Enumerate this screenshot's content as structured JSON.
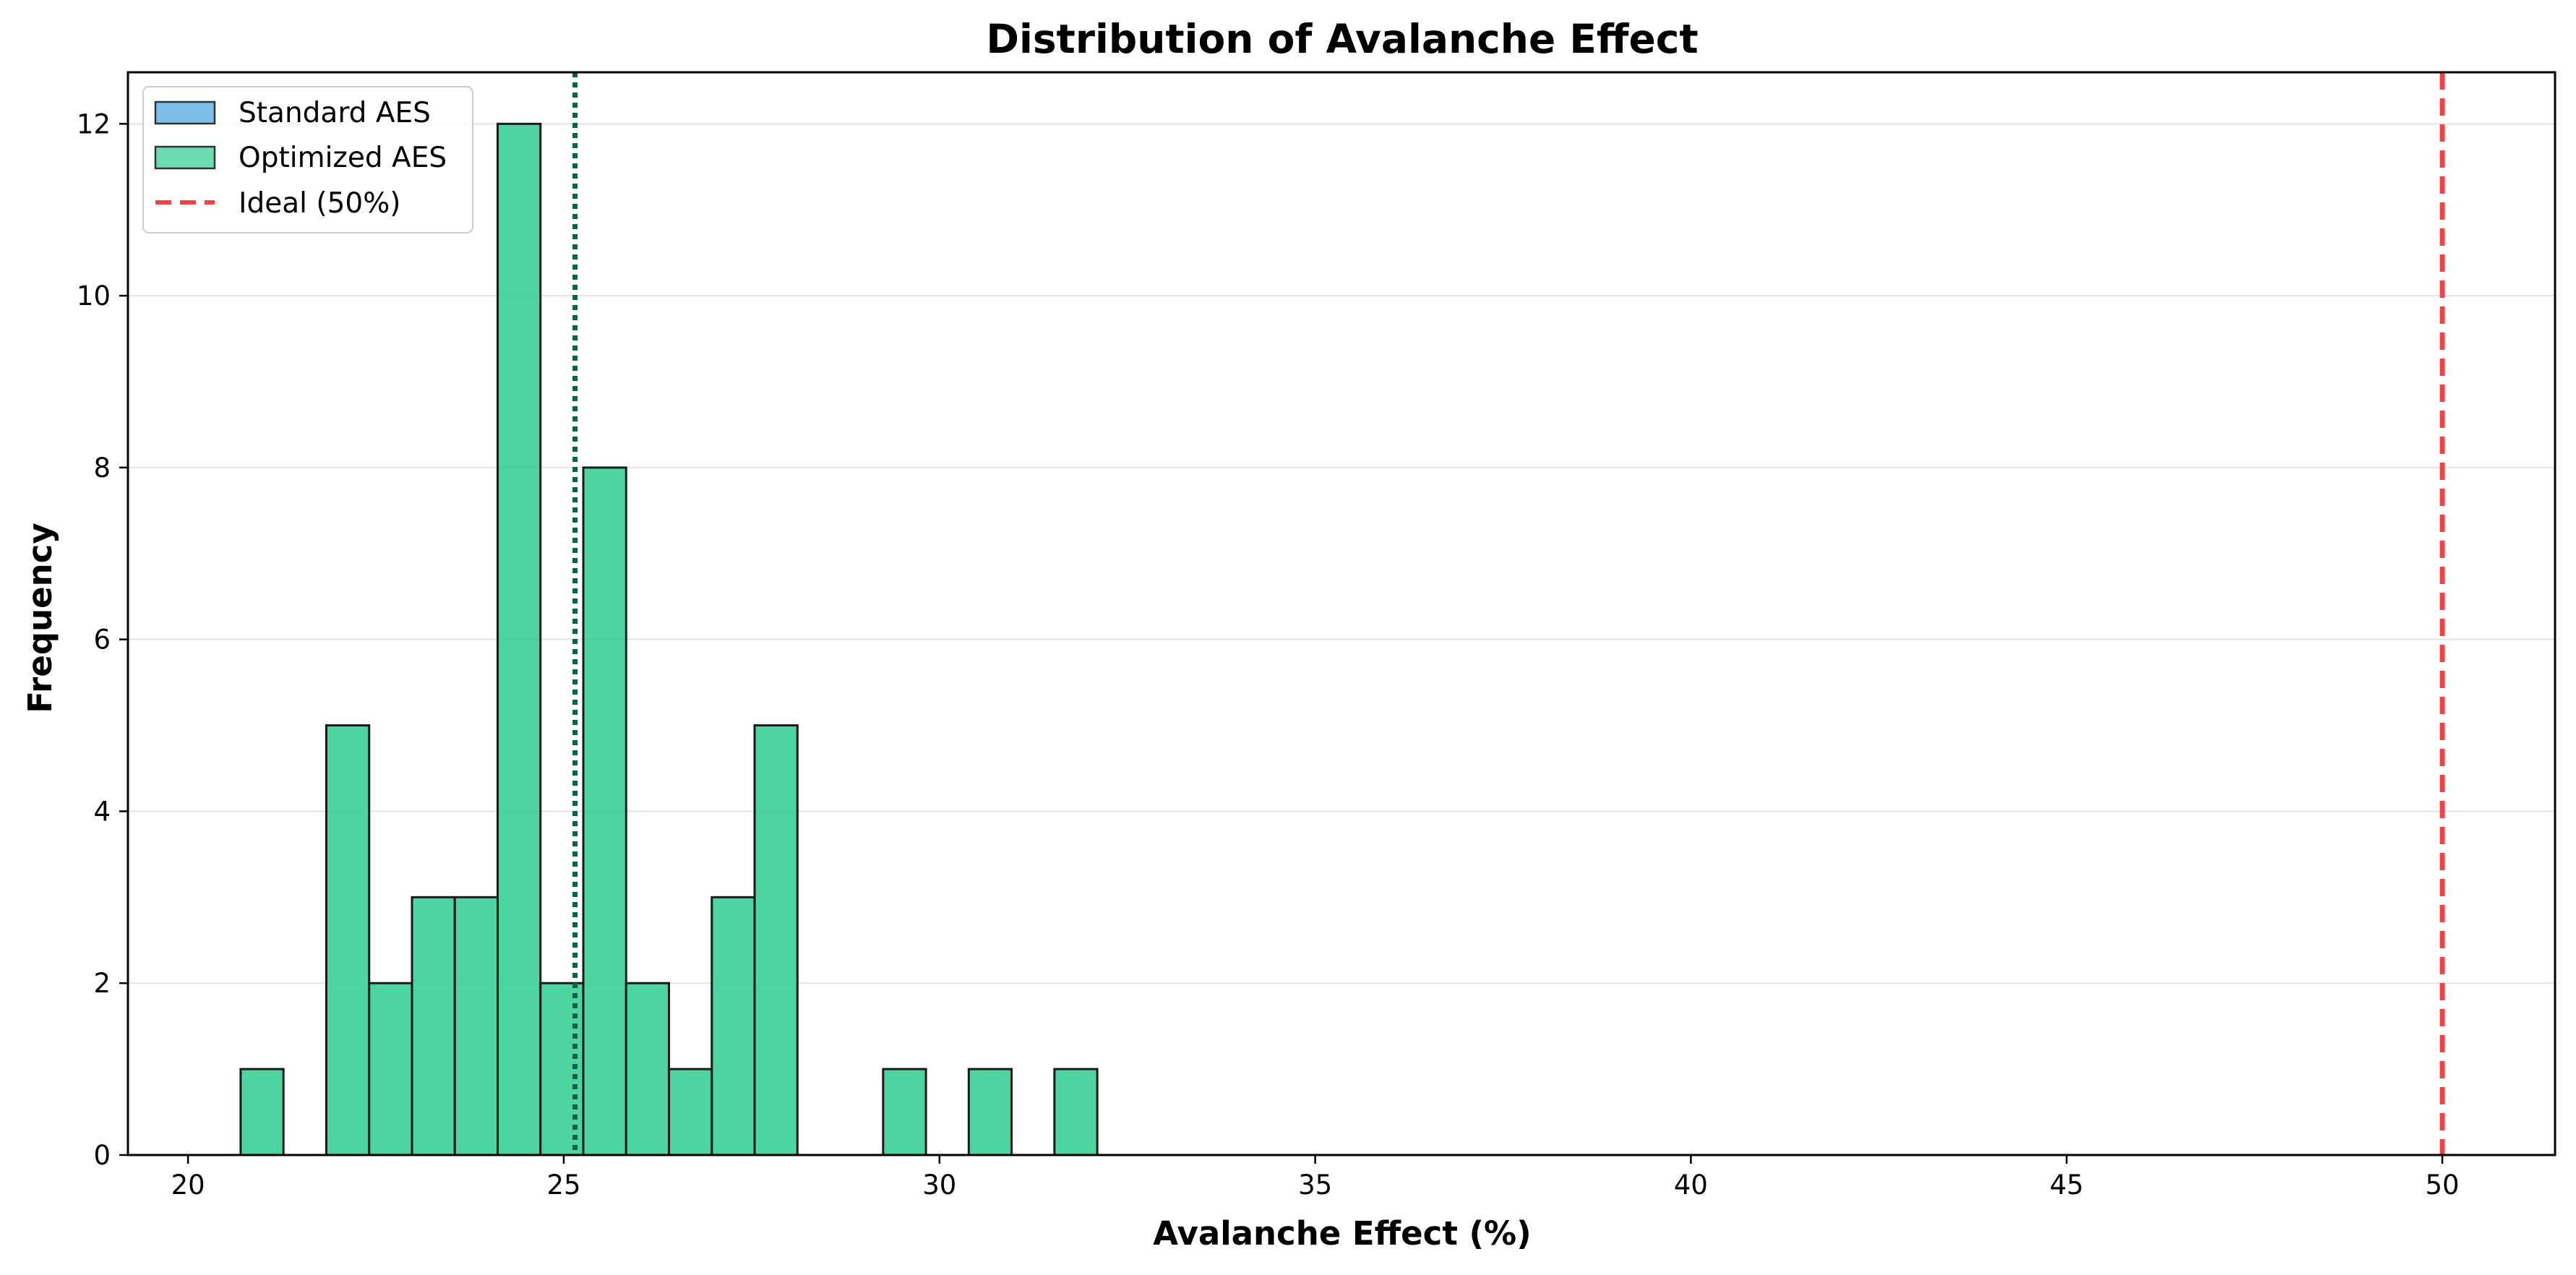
{
  "chart_data": {
    "type": "bar",
    "title": "Distribution of Avalanche Effect",
    "xlabel": "Avalanche Effect (%)",
    "ylabel": "Frequency",
    "xlim": [
      19.2,
      51.5
    ],
    "ylim": [
      0,
      12.6
    ],
    "xticks": [
      20,
      25,
      30,
      35,
      40,
      45,
      50
    ],
    "yticks": [
      0,
      2,
      4,
      6,
      8,
      10,
      12
    ],
    "grid": "y",
    "legend_position": "top-left",
    "bin_width": 0.57,
    "series": [
      {
        "name": "Standard AES",
        "color": "#5dade2",
        "bins": []
      },
      {
        "name": "Optimized AES",
        "color": "#2ecc8f",
        "bins": [
          {
            "x0": 20.7,
            "count": 1
          },
          {
            "x0": 21.84,
            "count": 5
          },
          {
            "x0": 22.41,
            "count": 2
          },
          {
            "x0": 22.98,
            "count": 3
          },
          {
            "x0": 23.55,
            "count": 3
          },
          {
            "x0": 24.12,
            "count": 12
          },
          {
            "x0": 24.69,
            "count": 2
          },
          {
            "x0": 25.26,
            "count": 8
          },
          {
            "x0": 25.83,
            "count": 2
          },
          {
            "x0": 26.4,
            "count": 1
          },
          {
            "x0": 26.97,
            "count": 3
          },
          {
            "x0": 27.54,
            "count": 5
          },
          {
            "x0": 29.25,
            "count": 1
          },
          {
            "x0": 30.39,
            "count": 1
          },
          {
            "x0": 31.53,
            "count": 1
          }
        ]
      }
    ],
    "reference_lines": [
      {
        "name": "Ideal (50%)",
        "x": 50,
        "color": "#ef4444",
        "style": "dashed",
        "in_legend": true
      },
      {
        "name": "",
        "x": 25.15,
        "color": "#0e5e48",
        "style": "dotted",
        "in_legend": false
      }
    ],
    "legend": [
      "Standard AES",
      "Optimized AES",
      "Ideal (50%)"
    ]
  }
}
